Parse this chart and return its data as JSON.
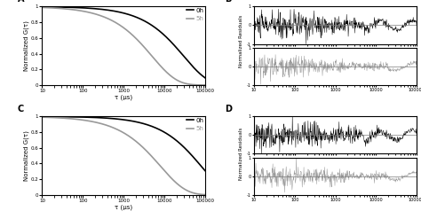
{
  "panel_labels": [
    "A",
    "B",
    "C",
    "D"
  ],
  "autocorr_xlabel": "τ (μs)",
  "autocorr_ylabel_A": "Normalized G(τ)",
  "autocorr_ylabel_C": "Normalized G(τ)",
  "residuals_ylabel": "Normalized Residuals",
  "legend_labels": [
    "0h",
    "5h"
  ],
  "line_color_0h": "#000000",
  "line_color_5h": "#999999",
  "xlim_autocorr": [
    10,
    100000
  ],
  "ylim_autocorr": [
    0,
    1
  ],
  "ylim_residuals": [
    -1,
    1
  ],
  "xlim_residuals": [
    10,
    100000
  ],
  "n_points": 500,
  "ac_A_0h_tauc": 30000,
  "ac_A_0h_beta": 0.72,
  "ac_A_5h_tauc": 5000,
  "ac_A_5h_beta": 0.72,
  "ac_C_0h_tauc": 80000,
  "ac_C_0h_beta": 0.72,
  "ac_C_5h_tauc": 8000,
  "ac_C_5h_beta": 0.7
}
